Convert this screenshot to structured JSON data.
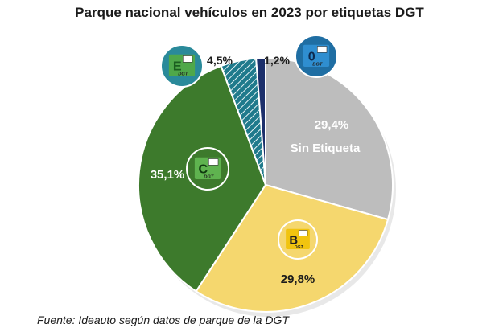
{
  "chart_data": {
    "type": "pie",
    "title": "Parque nacional vehículos en 2023 por etiquetas DGT",
    "slices": [
      {
        "key": "sin",
        "label": "Sin Etiqueta",
        "value": 29.4,
        "value_label": "29,4%",
        "color": "#bdbdbd"
      },
      {
        "key": "b",
        "label": "B",
        "value": 29.8,
        "value_label": "29,8%",
        "color": "#f5d76e"
      },
      {
        "key": "c",
        "label": "C",
        "value": 35.1,
        "value_label": "35,1%",
        "color": "#3d7a2c"
      },
      {
        "key": "eco",
        "label": "ECO",
        "value": 4.5,
        "value_label": "4,5%",
        "color": "#2a8a9a"
      },
      {
        "key": "cero",
        "label": "0",
        "value": 1.2,
        "value_label": "1,2%",
        "color": "#1c2f6b"
      }
    ]
  },
  "badges": {
    "eco_text": "ECO",
    "cero_text": "0",
    "c_text": "C",
    "b_text": "B",
    "dgt_text": "DGT"
  },
  "source": "Fuente: Ideauto según datos de parque de la DGT"
}
